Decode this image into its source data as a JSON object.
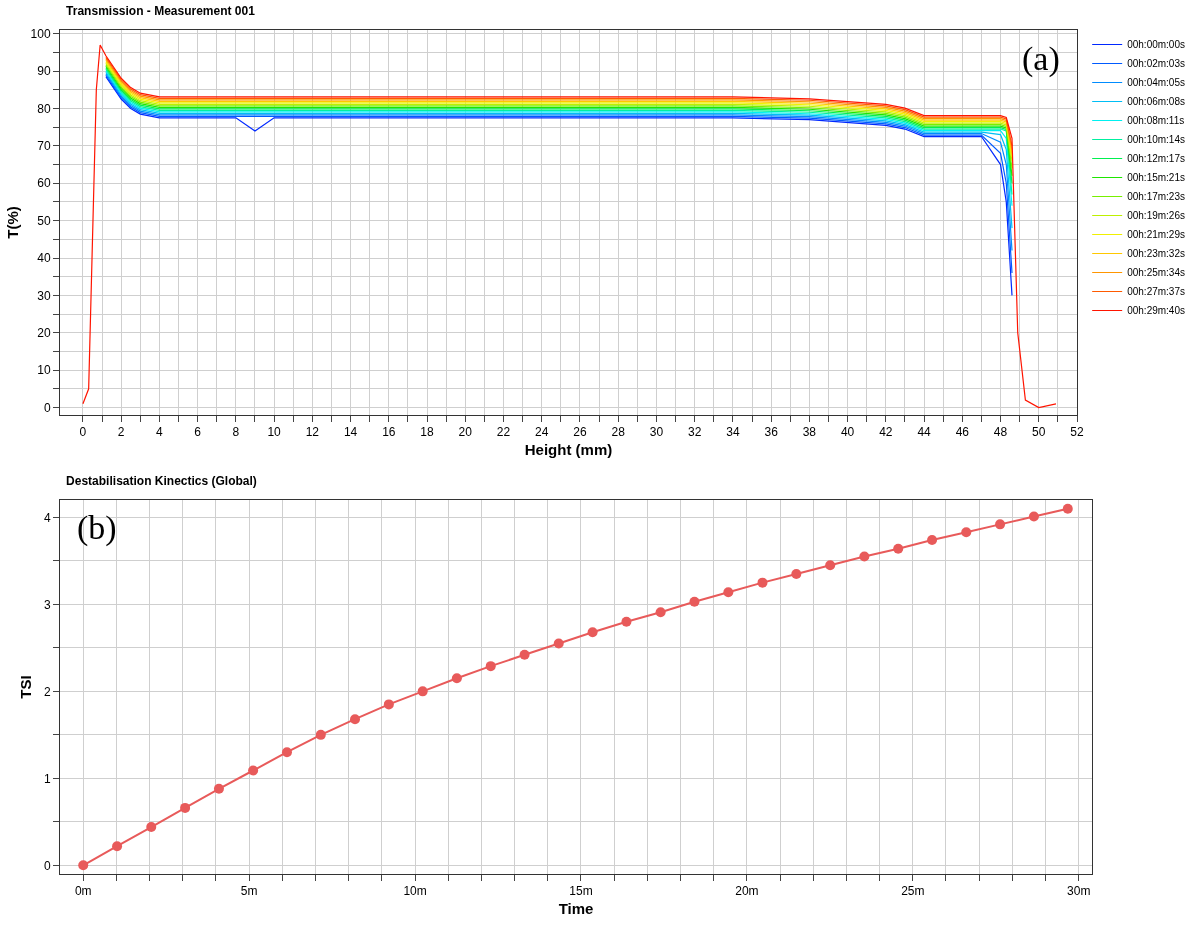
{
  "chart_data": [
    {
      "type": "line",
      "title": "Transmission - Measurement 001",
      "xlabel": "Height (mm)",
      "ylabel": "T(%)",
      "annotations": [
        "(a)"
      ],
      "series": [
        {
          "name": "00h:00m:00s",
          "color": "#0028ff",
          "x": [
            1.2,
            1.6,
            2,
            2.5,
            3,
            4,
            8,
            9,
            10,
            22,
            34,
            38,
            42,
            43,
            44,
            46,
            47,
            48,
            48.3,
            48.6
          ],
          "values": [
            88.5,
            85.5,
            82.5,
            80,
            78.5,
            77.5,
            77.5,
            74,
            77.5,
            77.5,
            77.5,
            77,
            75.5,
            74.5,
            72.5,
            72.5,
            72.5,
            65,
            55,
            30
          ]
        },
        {
          "name": "00h:02m:03s",
          "color": "#005aff",
          "x": [
            1.2,
            1.6,
            2,
            2.5,
            3,
            4,
            22,
            34,
            38,
            42,
            43,
            44,
            46,
            47,
            48,
            48.3,
            48.6
          ],
          "values": [
            88.9,
            85.9,
            82.9,
            80.4,
            78.9,
            77.9,
            77.9,
            77.9,
            77.4,
            75.9,
            74.9,
            72.9,
            72.9,
            72.9,
            68,
            60,
            36
          ]
        },
        {
          "name": "00h:04m:05s",
          "color": "#008cff",
          "x": [
            1.2,
            1.6,
            2,
            2.5,
            3,
            4,
            22,
            34,
            38,
            42,
            43,
            44,
            46,
            47,
            48,
            48.3,
            48.6
          ],
          "values": [
            89.3,
            86.3,
            83.3,
            80.8,
            79.3,
            78.3,
            78.3,
            78.3,
            77.8,
            76.3,
            75.3,
            73.3,
            73.3,
            73.3,
            71,
            65,
            42
          ]
        },
        {
          "name": "00h:06m:08s",
          "color": "#00bef5",
          "x": [
            1.2,
            1.6,
            2,
            2.5,
            3,
            4,
            22,
            34,
            38,
            42,
            43,
            44,
            46,
            47,
            48,
            48.3,
            48.6
          ],
          "values": [
            89.7,
            86.7,
            83.7,
            81.2,
            79.7,
            78.7,
            78.7,
            78.7,
            78.2,
            76.7,
            75.7,
            73.7,
            73.7,
            73.7,
            73,
            69,
            48
          ]
        },
        {
          "name": "00h:08m:11s",
          "color": "#00f0f0",
          "x": [
            1.2,
            1.6,
            2,
            2.5,
            3,
            4,
            22,
            34,
            38,
            42,
            43,
            44,
            46,
            47,
            48,
            48.3,
            48.6
          ],
          "values": [
            90.1,
            87.1,
            84.1,
            81.6,
            80.1,
            79.1,
            79.1,
            79.1,
            78.6,
            77.1,
            76.1,
            74.1,
            74.1,
            74.1,
            74.1,
            72,
            54
          ]
        },
        {
          "name": "00h:10m:14s",
          "color": "#00f0a0",
          "x": [
            1.2,
            1.6,
            2,
            2.5,
            3,
            4,
            22,
            34,
            38,
            42,
            43,
            44,
            46,
            47,
            48,
            48.3,
            48.6
          ],
          "values": [
            90.5,
            87.5,
            84.5,
            82,
            80.5,
            79.5,
            79.5,
            79.5,
            79,
            77.5,
            76.5,
            74.5,
            74.5,
            74.5,
            74.5,
            74,
            57
          ]
        },
        {
          "name": "00h:12m:17s",
          "color": "#00f050",
          "x": [
            1.2,
            1.6,
            2,
            2.5,
            3,
            4,
            22,
            34,
            38,
            42,
            43,
            44,
            46,
            47,
            48,
            48.3,
            48.6
          ],
          "values": [
            90.9,
            87.9,
            84.9,
            82.4,
            80.9,
            79.9,
            79.9,
            79.9,
            79.4,
            77.9,
            76.9,
            74.9,
            74.9,
            74.9,
            74.9,
            74.4,
            60
          ]
        },
        {
          "name": "00h:15m:21s",
          "color": "#1ee600",
          "x": [
            1.2,
            1.6,
            2,
            2.5,
            3,
            4,
            22,
            34,
            38,
            42,
            43,
            44,
            46,
            47,
            48,
            48.3,
            48.6
          ],
          "values": [
            91.3,
            88.3,
            85.3,
            82.8,
            81.3,
            80.3,
            80.3,
            80.3,
            79.8,
            78.3,
            77.3,
            75.3,
            75.3,
            75.3,
            75.3,
            74.8,
            62
          ]
        },
        {
          "name": "00h:17m:23s",
          "color": "#78f000",
          "x": [
            1.2,
            1.6,
            2,
            2.5,
            3,
            4,
            22,
            34,
            38,
            42,
            43,
            44,
            46,
            47,
            48,
            48.3,
            48.6
          ],
          "values": [
            91.7,
            88.7,
            85.7,
            83.2,
            81.7,
            80.7,
            80.7,
            80.7,
            80.2,
            78.7,
            77.7,
            75.7,
            75.7,
            75.7,
            75.7,
            75.2,
            64
          ]
        },
        {
          "name": "00h:19m:26s",
          "color": "#bef000",
          "x": [
            1.2,
            1.6,
            2,
            2.5,
            3,
            4,
            22,
            34,
            38,
            42,
            43,
            44,
            46,
            47,
            48,
            48.3,
            48.6
          ],
          "values": [
            92.1,
            89.1,
            86.1,
            83.6,
            82.1,
            81.1,
            81.1,
            81.1,
            80.6,
            79.1,
            78.1,
            76.1,
            76.1,
            76.1,
            76.1,
            75.6,
            66
          ]
        },
        {
          "name": "00h:21m:29s",
          "color": "#f0f000",
          "x": [
            1.2,
            1.6,
            2,
            2.5,
            3,
            4,
            22,
            34,
            38,
            42,
            43,
            44,
            46,
            47,
            48,
            48.3,
            48.6
          ],
          "values": [
            92.5,
            89.5,
            86.5,
            84,
            82.5,
            81.5,
            81.5,
            81.5,
            81,
            79.5,
            78.5,
            76.5,
            76.5,
            76.5,
            76.5,
            76,
            67
          ]
        },
        {
          "name": "00h:23m:32s",
          "color": "#ffc800",
          "x": [
            1.2,
            1.6,
            2,
            2.5,
            3,
            4,
            22,
            34,
            38,
            42,
            43,
            44,
            46,
            47,
            48,
            48.3,
            48.6
          ],
          "values": [
            92.9,
            89.9,
            86.9,
            84.4,
            82.9,
            81.9,
            81.9,
            81.9,
            81.4,
            79.9,
            78.9,
            76.9,
            76.9,
            76.9,
            76.9,
            76.4,
            68
          ]
        },
        {
          "name": "00h:25m:34s",
          "color": "#ff9600",
          "x": [
            1.2,
            1.6,
            2,
            2.5,
            3,
            4,
            22,
            34,
            38,
            42,
            43,
            44,
            46,
            47,
            48,
            48.3,
            48.6
          ],
          "values": [
            93.3,
            90.3,
            87.3,
            84.8,
            83.3,
            82.3,
            82.3,
            82.3,
            81.8,
            80.3,
            79.3,
            77.3,
            77.3,
            77.3,
            77.3,
            76.8,
            69
          ]
        },
        {
          "name": "00h:27m:37s",
          "color": "#ff5a00",
          "x": [
            1.2,
            1.6,
            2,
            2.5,
            3,
            4,
            22,
            34,
            38,
            42,
            43,
            44,
            46,
            47,
            48,
            48.3,
            48.6
          ],
          "values": [
            93.7,
            90.7,
            87.7,
            85.2,
            83.7,
            82.7,
            82.7,
            82.7,
            82.2,
            80.7,
            79.7,
            77.7,
            77.7,
            77.7,
            77.7,
            77.2,
            70
          ]
        },
        {
          "name": "00h:29m:40s",
          "color": "#ff1400",
          "x": [
            0,
            0.3,
            0.5,
            0.7,
            0.9,
            1.2,
            1.6,
            2,
            2.5,
            3,
            4,
            22,
            34,
            38,
            42,
            43,
            44,
            46,
            47,
            48,
            48.3,
            48.6,
            48.9,
            49.3,
            50,
            50.9
          ],
          "values": [
            1,
            5,
            45,
            85,
            97,
            94.1,
            91.1,
            88.1,
            85.6,
            84.1,
            83.1,
            83.1,
            83.1,
            82.6,
            81.1,
            80.1,
            78.1,
            78.1,
            78.1,
            78.1,
            77.6,
            72,
            20,
            2,
            0,
            1
          ]
        }
      ],
      "xlim": [
        -1.2,
        52
      ],
      "xticks": [
        0,
        {
          "value": 1,
          "label": null
        },
        2,
        {
          "value": 3,
          "label": null
        },
        4,
        {
          "value": 5,
          "label": null
        },
        6,
        {
          "value": 7,
          "label": null
        },
        8,
        {
          "value": 9,
          "label": null
        },
        10,
        {
          "value": 11,
          "label": null
        },
        12,
        {
          "value": 13,
          "label": null
        },
        14,
        {
          "value": 15,
          "label": null
        },
        16,
        {
          "value": 17,
          "label": null
        },
        18,
        {
          "value": 19,
          "label": null
        },
        20,
        {
          "value": 21,
          "label": null
        },
        22,
        {
          "value": 23,
          "label": null
        },
        24,
        {
          "value": 25,
          "label": null
        },
        26,
        {
          "value": 27,
          "label": null
        },
        28,
        {
          "value": 29,
          "label": null
        },
        30,
        {
          "value": 31,
          "label": null
        },
        32,
        {
          "value": 33,
          "label": null
        },
        34,
        {
          "value": 35,
          "label": null
        },
        36,
        {
          "value": 37,
          "label": null
        },
        38,
        {
          "value": 39,
          "label": null
        },
        40,
        {
          "value": 41,
          "label": null
        },
        42,
        {
          "value": 43,
          "label": null
        },
        44,
        {
          "value": 45,
          "label": null
        },
        46,
        {
          "value": 47,
          "label": null
        },
        48,
        {
          "value": 49,
          "label": null
        },
        50,
        {
          "value": 51,
          "label": null
        },
        52
      ],
      "ylim": [
        -2,
        101
      ],
      "yticks": [
        0,
        {
          "value": 5,
          "label": null
        },
        10,
        {
          "value": 15,
          "label": null
        },
        20,
        {
          "value": 25,
          "label": null
        },
        30,
        {
          "value": 35,
          "label": null
        },
        40,
        {
          "value": 45,
          "label": null
        },
        50,
        {
          "value": 55,
          "label": null
        },
        60,
        {
          "value": 65,
          "label": null
        },
        70,
        {
          "value": 75,
          "label": null
        },
        80,
        {
          "value": 85,
          "label": null
        },
        90,
        {
          "value": 95,
          "label": null
        },
        100
      ],
      "grid": true,
      "legend": "right",
      "marker": "none",
      "line_style": "solid"
    },
    {
      "type": "line",
      "title": "Destabilisation Kinectics (Global)",
      "xlabel": "Time",
      "ylabel": "TSI",
      "annotations": [
        "(b)"
      ],
      "x": [
        0,
        1.02,
        2.05,
        3.07,
        4.09,
        5.12,
        6.14,
        7.16,
        8.19,
        9.21,
        10.23,
        11.26,
        12.28,
        13.3,
        14.33,
        15.35,
        16.37,
        17.4,
        18.42,
        19.44,
        20.47,
        21.49,
        22.51,
        23.54,
        24.56,
        25.58,
        26.61,
        27.63,
        28.65,
        29.67
      ],
      "series": [
        {
          "color": "#e85a5a",
          "values": [
            0,
            0.22,
            0.44,
            0.66,
            0.88,
            1.09,
            1.3,
            1.5,
            1.68,
            1.85,
            2,
            2.15,
            2.29,
            2.42,
            2.55,
            2.68,
            2.8,
            2.91,
            3.03,
            3.14,
            3.25,
            3.35,
            3.45,
            3.55,
            3.64,
            3.74,
            3.83,
            3.92,
            4.01,
            4.1
          ]
        }
      ],
      "xlim": [
        -0.7,
        30.4
      ],
      "xticks": [
        {
          "value": 0,
          "label": "0m"
        },
        {
          "value": 1,
          "label": null
        },
        {
          "value": 2,
          "label": null
        },
        {
          "value": 3,
          "label": null
        },
        {
          "value": 4,
          "label": null
        },
        {
          "value": 5,
          "label": "5m"
        },
        {
          "value": 6,
          "label": null
        },
        {
          "value": 7,
          "label": null
        },
        {
          "value": 8,
          "label": null
        },
        {
          "value": 9,
          "label": null
        },
        {
          "value": 10,
          "label": "10m"
        },
        {
          "value": 11,
          "label": null
        },
        {
          "value": 12,
          "label": null
        },
        {
          "value": 13,
          "label": null
        },
        {
          "value": 14,
          "label": null
        },
        {
          "value": 15,
          "label": "15m"
        },
        {
          "value": 16,
          "label": null
        },
        {
          "value": 17,
          "label": null
        },
        {
          "value": 18,
          "label": null
        },
        {
          "value": 19,
          "label": null
        },
        {
          "value": 20,
          "label": "20m"
        },
        {
          "value": 21,
          "label": null
        },
        {
          "value": 22,
          "label": null
        },
        {
          "value": 23,
          "label": null
        },
        {
          "value": 24,
          "label": null
        },
        {
          "value": 25,
          "label": "25m"
        },
        {
          "value": 26,
          "label": null
        },
        {
          "value": 27,
          "label": null
        },
        {
          "value": 28,
          "label": null
        },
        {
          "value": 29,
          "label": null
        },
        {
          "value": 30,
          "label": "30m"
        }
      ],
      "ylim": [
        -0.1,
        4.2
      ],
      "yticks": [
        0,
        {
          "value": 0.5,
          "label": null
        },
        1,
        {
          "value": 1.5,
          "label": null
        },
        2,
        {
          "value": 2.5,
          "label": null
        },
        3,
        {
          "value": 3.5,
          "label": null
        },
        4
      ],
      "grid": true,
      "legend": false,
      "marker": "circle",
      "line_style": "solid"
    }
  ]
}
